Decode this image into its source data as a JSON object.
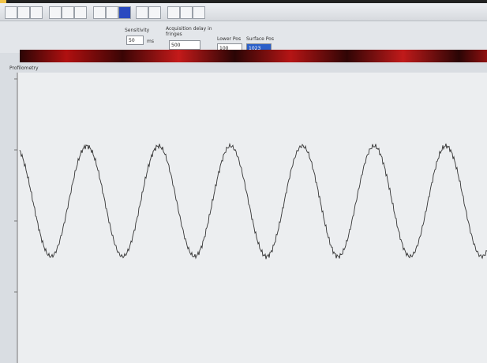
{
  "panel": {
    "sensitivity_label": "Sensitivity",
    "sensitivity_value": "50",
    "sensitivity_unit": "ms",
    "delay_label": "Acquisition delay in fringes",
    "delay_value": "500",
    "lower_pos_label": "Lower Pos",
    "lower_pos_value": "100",
    "surface_pos_label": "Surface Pos",
    "surface_pos_value": "1023"
  },
  "plot": {
    "title": "Profilometry"
  }
}
